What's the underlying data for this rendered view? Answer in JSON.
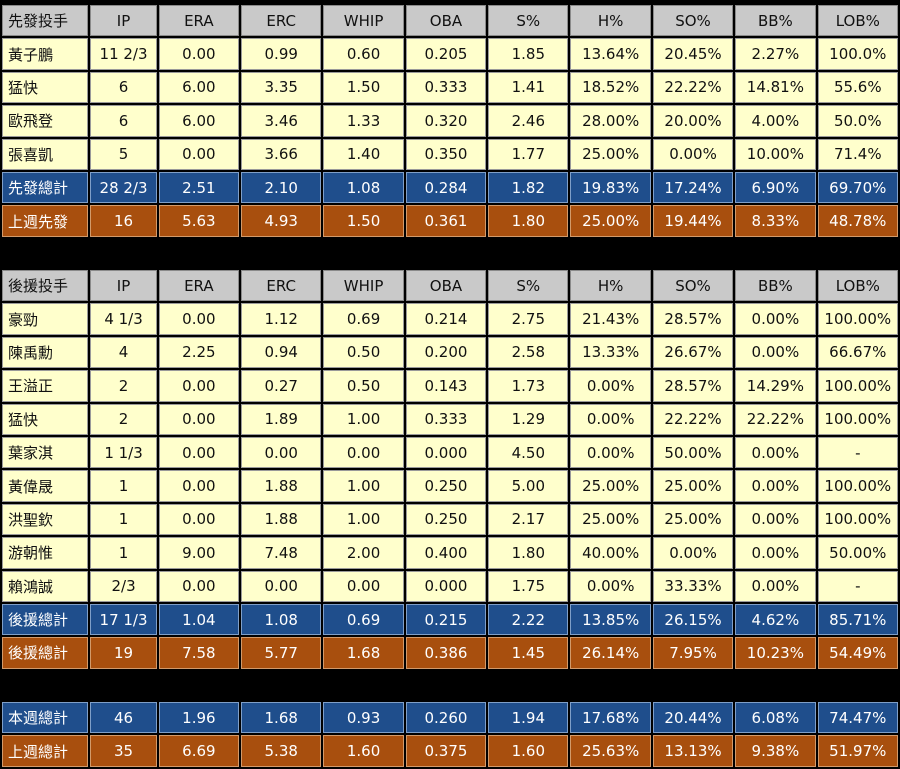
{
  "columns": [
    "IP",
    "ERA",
    "ERC",
    "WHIP",
    "OBA",
    "S%",
    "H%",
    "SO%",
    "BB%",
    "LOB%"
  ],
  "starters": {
    "title": "先發投手",
    "rows": [
      [
        "黃子鵬",
        "11 2/3",
        "0.00",
        "0.99",
        "0.60",
        "0.205",
        "1.85",
        "13.64%",
        "20.45%",
        "2.27%",
        "100.0%"
      ],
      [
        "猛快",
        "6",
        "6.00",
        "3.35",
        "1.50",
        "0.333",
        "1.41",
        "18.52%",
        "22.22%",
        "14.81%",
        "55.6%"
      ],
      [
        "歐飛登",
        "6",
        "6.00",
        "3.46",
        "1.33",
        "0.320",
        "2.46",
        "28.00%",
        "20.00%",
        "4.00%",
        "50.0%"
      ],
      [
        "張喜凱",
        "5",
        "0.00",
        "3.66",
        "1.40",
        "0.350",
        "1.77",
        "25.00%",
        "0.00%",
        "10.00%",
        "71.4%"
      ]
    ],
    "total": [
      "先發總計",
      "28 2/3",
      "2.51",
      "2.10",
      "1.08",
      "0.284",
      "1.82",
      "19.83%",
      "17.24%",
      "6.90%",
      "69.70%"
    ],
    "last_week": [
      "上週先發",
      "16",
      "5.63",
      "4.93",
      "1.50",
      "0.361",
      "1.80",
      "25.00%",
      "19.44%",
      "8.33%",
      "48.78%"
    ]
  },
  "relievers": {
    "title": "後援投手",
    "rows": [
      [
        "豪勁",
        "4 1/3",
        "0.00",
        "1.12",
        "0.69",
        "0.214",
        "2.75",
        "21.43%",
        "28.57%",
        "0.00%",
        "100.00%"
      ],
      [
        "陳禹勳",
        "4",
        "2.25",
        "0.94",
        "0.50",
        "0.200",
        "2.58",
        "13.33%",
        "26.67%",
        "0.00%",
        "66.67%"
      ],
      [
        "王溢正",
        "2",
        "0.00",
        "0.27",
        "0.50",
        "0.143",
        "1.73",
        "0.00%",
        "28.57%",
        "14.29%",
        "100.00%"
      ],
      [
        "猛快",
        "2",
        "0.00",
        "1.89",
        "1.00",
        "0.333",
        "1.29",
        "0.00%",
        "22.22%",
        "22.22%",
        "100.00%"
      ],
      [
        "葉家淇",
        "1 1/3",
        "0.00",
        "0.00",
        "0.00",
        "0.000",
        "4.50",
        "0.00%",
        "50.00%",
        "0.00%",
        "-"
      ],
      [
        "黃偉晟",
        "1",
        "0.00",
        "1.88",
        "1.00",
        "0.250",
        "5.00",
        "25.00%",
        "25.00%",
        "0.00%",
        "100.00%"
      ],
      [
        "洪聖欽",
        "1",
        "0.00",
        "1.88",
        "1.00",
        "0.250",
        "2.17",
        "25.00%",
        "25.00%",
        "0.00%",
        "100.00%"
      ],
      [
        "游朝惟",
        "1",
        "9.00",
        "7.48",
        "2.00",
        "0.400",
        "1.80",
        "40.00%",
        "0.00%",
        "0.00%",
        "50.00%"
      ],
      [
        "賴鴻誠",
        "2/3",
        "0.00",
        "0.00",
        "0.00",
        "0.000",
        "1.75",
        "0.00%",
        "33.33%",
        "0.00%",
        "-"
      ]
    ],
    "total": [
      "後援總計",
      "17 1/3",
      "1.04",
      "1.08",
      "0.69",
      "0.215",
      "2.22",
      "13.85%",
      "26.15%",
      "4.62%",
      "85.71%"
    ],
    "last_week": [
      "後援總計",
      "19",
      "7.58",
      "5.77",
      "1.68",
      "0.386",
      "1.45",
      "26.14%",
      "7.95%",
      "10.23%",
      "54.49%"
    ]
  },
  "totals": {
    "this_week": [
      "本週總計",
      "46",
      "1.96",
      "1.68",
      "0.93",
      "0.260",
      "1.94",
      "17.68%",
      "20.44%",
      "6.08%",
      "74.47%"
    ],
    "last_week": [
      "上週總計",
      "35",
      "6.69",
      "5.38",
      "1.60",
      "0.375",
      "1.60",
      "25.63%",
      "13.13%",
      "9.38%",
      "51.97%"
    ]
  }
}
